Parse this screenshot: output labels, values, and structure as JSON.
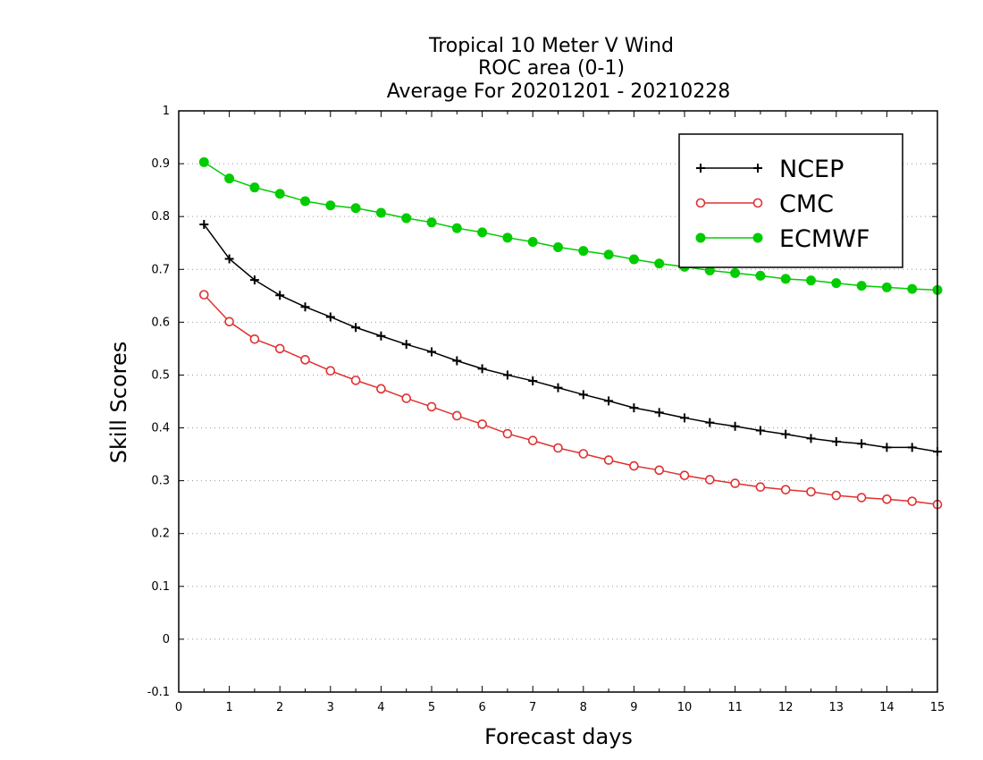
{
  "chart_data": {
    "type": "line",
    "title_lines": [
      "Tropical 10 Meter V Wind",
      "ROC area (0-1)",
      "Average For 20201201 - 20210228"
    ],
    "xlabel": "Forecast days",
    "ylabel": "Skill Scores",
    "xlim": [
      0,
      15
    ],
    "ylim": [
      -0.1,
      1
    ],
    "x_ticks": [
      0,
      1,
      2,
      3,
      4,
      5,
      6,
      7,
      8,
      9,
      10,
      11,
      12,
      13,
      14,
      15
    ],
    "x_tick_labels": [
      "0",
      "1",
      "2",
      "3",
      "4",
      "5",
      "6",
      "7",
      "8",
      "9",
      "10",
      "11",
      "12",
      "13",
      "14",
      "15"
    ],
    "y_ticks": [
      -0.1,
      0,
      0.1,
      0.2,
      0.3,
      0.4,
      0.5,
      0.6,
      0.7,
      0.8,
      0.9,
      1
    ],
    "y_tick_labels": [
      "-0.1",
      "0",
      "0.1",
      "0.2",
      "0.3",
      "0.4",
      "0.5",
      "0.6",
      "0.7",
      "0.8",
      "0.9",
      "1"
    ],
    "grid": "horizontal dotted",
    "legend_position": "top-right",
    "x": [
      0.5,
      1,
      1.5,
      2,
      2.5,
      3,
      3.5,
      4,
      4.5,
      5,
      5.5,
      6,
      6.5,
      7,
      7.5,
      8,
      8.5,
      9,
      9.5,
      10,
      10.5,
      11,
      11.5,
      12,
      12.5,
      13,
      13.5,
      14,
      14.5,
      15
    ],
    "series": [
      {
        "name": "NCEP",
        "color": "#000000",
        "marker": "plus",
        "values": [
          0.785,
          0.72,
          0.68,
          0.651,
          0.629,
          0.61,
          0.59,
          0.574,
          0.558,
          0.544,
          0.527,
          0.512,
          0.5,
          0.489,
          0.476,
          0.463,
          0.451,
          0.438,
          0.429,
          0.419,
          0.41,
          0.403,
          0.395,
          0.388,
          0.38,
          0.374,
          0.37,
          0.363,
          0.363,
          0.355
        ]
      },
      {
        "name": "CMC",
        "color": "#e03030",
        "marker": "open-circle",
        "values": [
          0.652,
          0.601,
          0.568,
          0.55,
          0.529,
          0.508,
          0.49,
          0.474,
          0.456,
          0.44,
          0.423,
          0.407,
          0.389,
          0.376,
          0.362,
          0.351,
          0.339,
          0.328,
          0.32,
          0.31,
          0.302,
          0.295,
          0.288,
          0.283,
          0.279,
          0.272,
          0.268,
          0.265,
          0.261,
          0.255
        ]
      },
      {
        "name": "ECMWF",
        "color": "#00cc00",
        "marker": "filled-circle",
        "values": [
          0.903,
          0.872,
          0.855,
          0.843,
          0.829,
          0.821,
          0.816,
          0.807,
          0.797,
          0.789,
          0.778,
          0.77,
          0.76,
          0.752,
          0.742,
          0.735,
          0.728,
          0.719,
          0.711,
          0.705,
          0.698,
          0.693,
          0.688,
          0.682,
          0.679,
          0.674,
          0.669,
          0.666,
          0.663,
          0.661
        ]
      }
    ]
  }
}
